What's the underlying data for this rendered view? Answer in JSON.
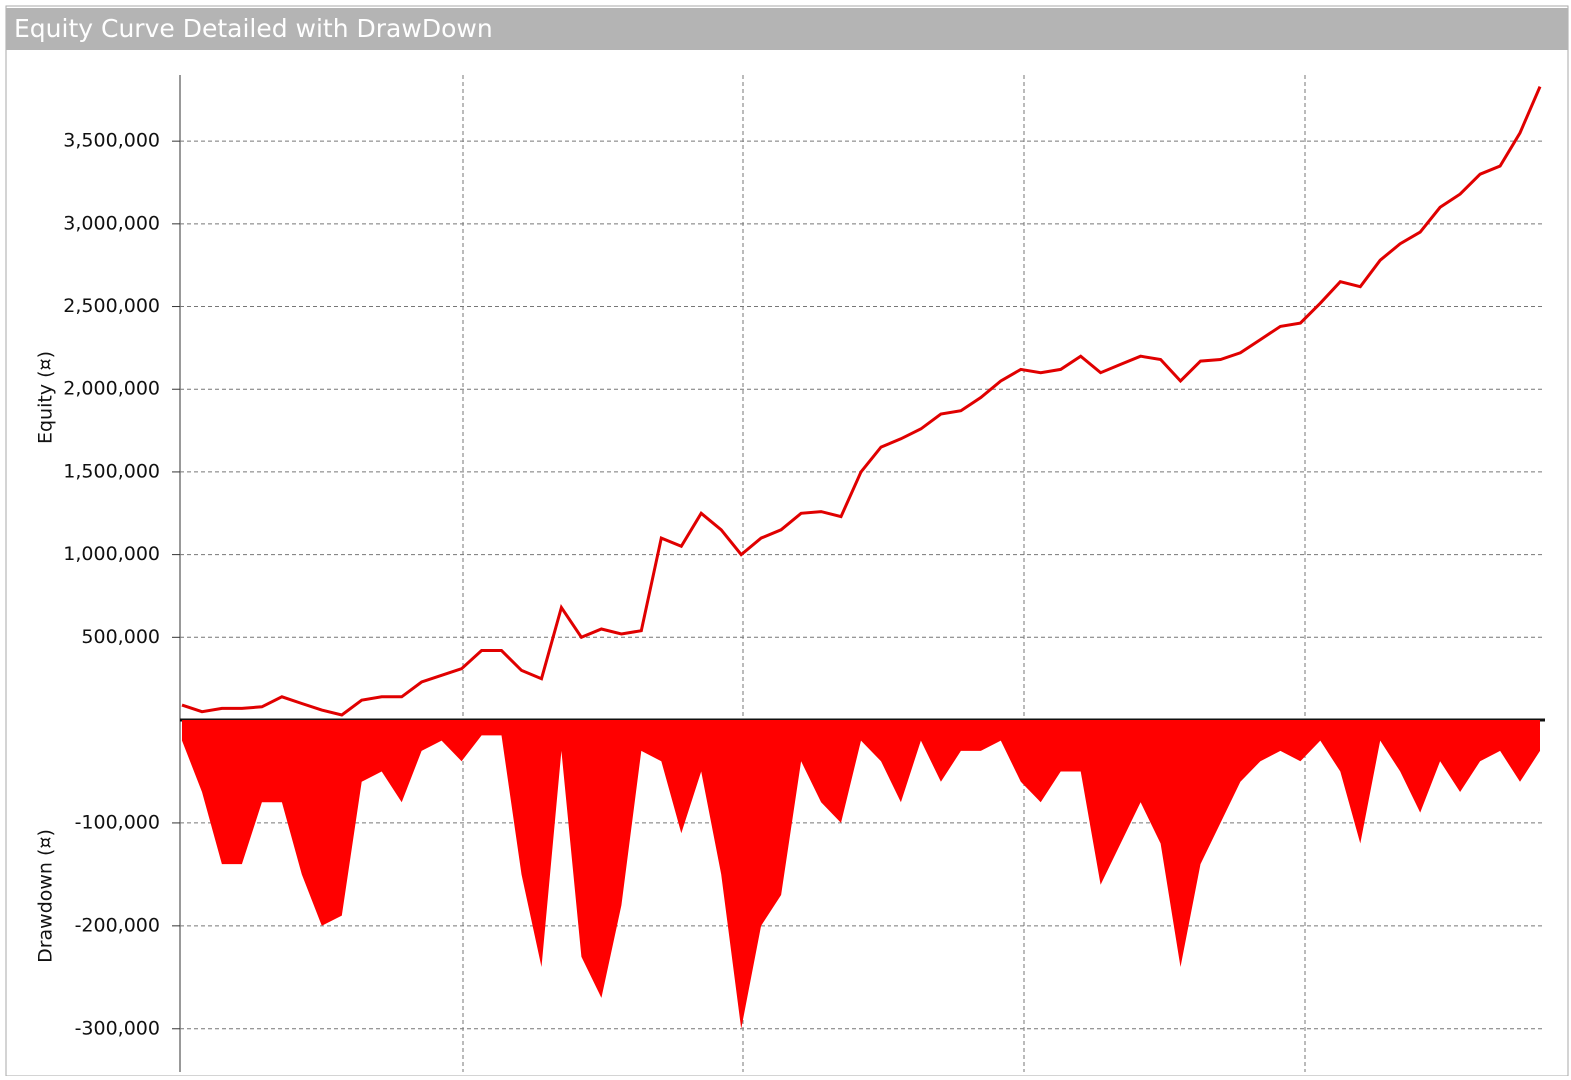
{
  "chart_data": [
    {
      "type": "line",
      "title": "Equity Curve Detailed with DrawDown",
      "y_label": "Equity (¤)",
      "color": "#e00000",
      "grid": true,
      "ylim": [
        0,
        3900000
      ],
      "yticks": [
        {
          "value": 500000,
          "label": "500,000"
        },
        {
          "value": 1000000,
          "label": "1,000,000"
        },
        {
          "value": 1500000,
          "label": "1,500,000"
        },
        {
          "value": 2000000,
          "label": "2,000,000"
        },
        {
          "value": 2500000,
          "label": "2,500,000"
        },
        {
          "value": 3000000,
          "label": "3,000,000"
        },
        {
          "value": 3500000,
          "label": "3,500,000"
        }
      ],
      "values": [
        90000,
        50000,
        70000,
        70000,
        80000,
        140000,
        100000,
        60000,
        30000,
        120000,
        140000,
        140000,
        230000,
        270000,
        310000,
        420000,
        420000,
        300000,
        250000,
        680000,
        500000,
        550000,
        520000,
        540000,
        1100000,
        1050000,
        1250000,
        1150000,
        1000000,
        1100000,
        1150000,
        1250000,
        1260000,
        1230000,
        1500000,
        1650000,
        1700000,
        1760000,
        1850000,
        1870000,
        1950000,
        2050000,
        2120000,
        2100000,
        2120000,
        2200000,
        2100000,
        2150000,
        2200000,
        2180000,
        2050000,
        2170000,
        2180000,
        2220000,
        2300000,
        2380000,
        2400000,
        2520000,
        2650000,
        2620000,
        2780000,
        2880000,
        2950000,
        3100000,
        3180000,
        3300000,
        3350000,
        3550000,
        3830000
      ]
    },
    {
      "type": "area",
      "y_label": "Drawdown (¤)",
      "color": "#ff0000",
      "grid": true,
      "ylim": [
        -342000,
        0
      ],
      "yticks": [
        {
          "value": -300000,
          "label": "-300,000"
        },
        {
          "value": -200000,
          "label": "-200,000"
        },
        {
          "value": -100000,
          "label": "-100,000"
        }
      ],
      "values": [
        -20000,
        -70000,
        -140000,
        -140000,
        -80000,
        -80000,
        -150000,
        -200000,
        -190000,
        -60000,
        -50000,
        -80000,
        -30000,
        -20000,
        -40000,
        -15000,
        -15000,
        -150000,
        -240000,
        -30000,
        -230000,
        -270000,
        -180000,
        -30000,
        -40000,
        -110000,
        -50000,
        -150000,
        -300000,
        -200000,
        -170000,
        -40000,
        -80000,
        -100000,
        -20000,
        -40000,
        -80000,
        -20000,
        -60000,
        -30000,
        -30000,
        -20000,
        -60000,
        -80000,
        -50000,
        -50000,
        -160000,
        -120000,
        -80000,
        -120000,
        -240000,
        -140000,
        -100000,
        -60000,
        -40000,
        -30000,
        -40000,
        -20000,
        -50000,
        -120000,
        -20000,
        -50000,
        -90000,
        -40000,
        -70000,
        -40000,
        -30000,
        -60000,
        -30000
      ]
    }
  ]
}
